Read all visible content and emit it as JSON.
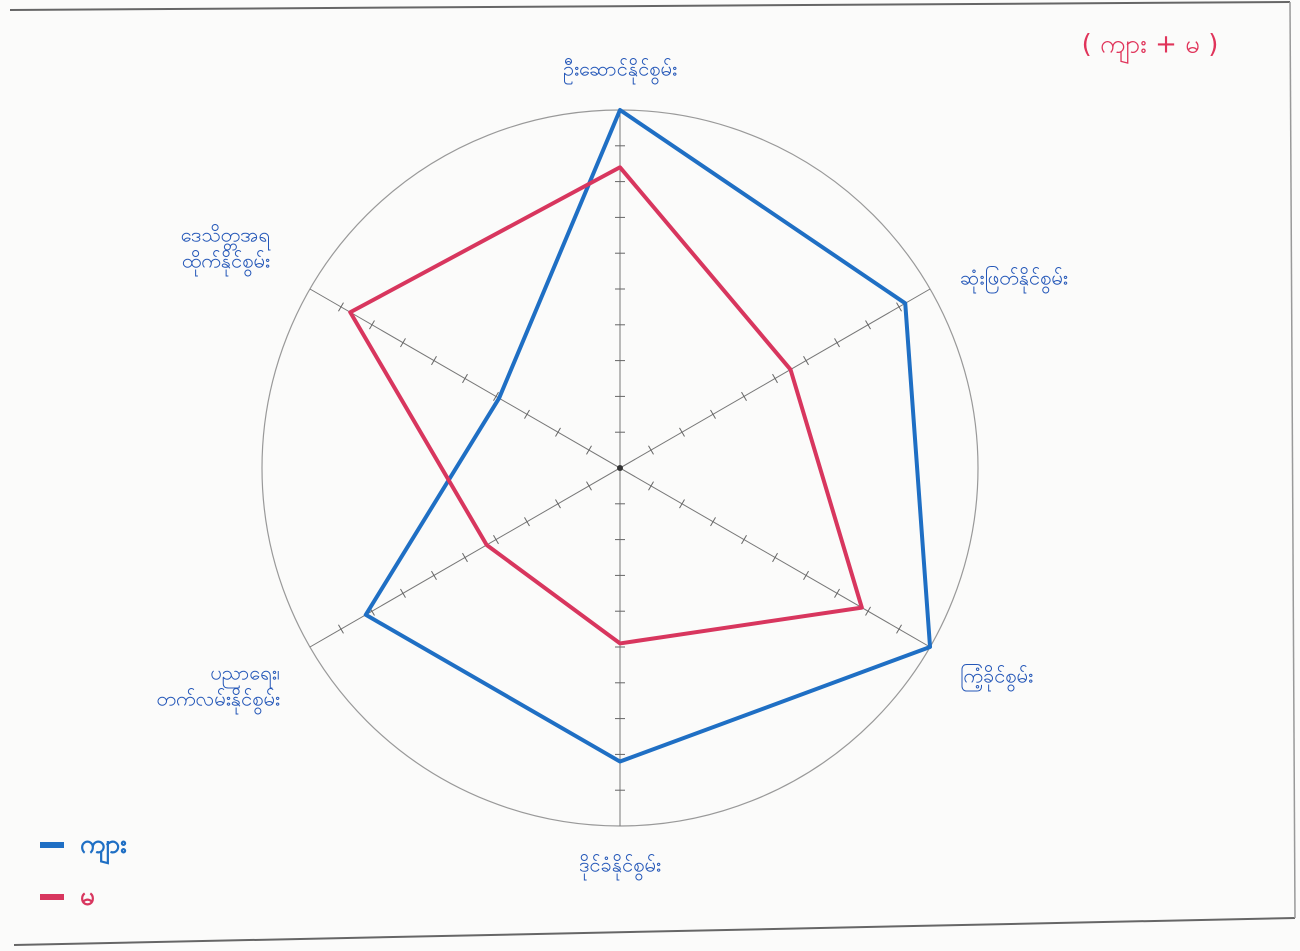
{
  "chart_data": {
    "type": "radar",
    "title": "( ကျား + မ )",
    "categories": [
      [
        "ဦးဆောင်နိုင်စွမ်း"
      ],
      [
        "ဆုံးဖြတ်နိုင်စွမ်း"
      ],
      [
        "ကြံ့ခိုင်စွမ်း"
      ],
      [
        "ဒိုင်ခံနိုင်စွမ်း"
      ],
      [
        "ပညာရေး၊",
        "တက်လမ်းနိုင်စွမ်း"
      ],
      [
        "ဒေသိတ္တအရ",
        "ထိုက်နိုင်စွမ်း"
      ]
    ],
    "rlim": [
      0,
      10
    ],
    "rticks": [
      1,
      2,
      3,
      4,
      5,
      6,
      7,
      8,
      9
    ],
    "series": [
      {
        "name": "ကျား",
        "color": "#1f6fc4",
        "values": [
          10,
          9.2,
          10,
          8.2,
          8.2,
          3.9
        ]
      },
      {
        "name": "မ",
        "color": "#d8365e",
        "values": [
          8.4,
          5.5,
          7.8,
          4.9,
          4.3,
          8.7
        ]
      }
    ]
  }
}
